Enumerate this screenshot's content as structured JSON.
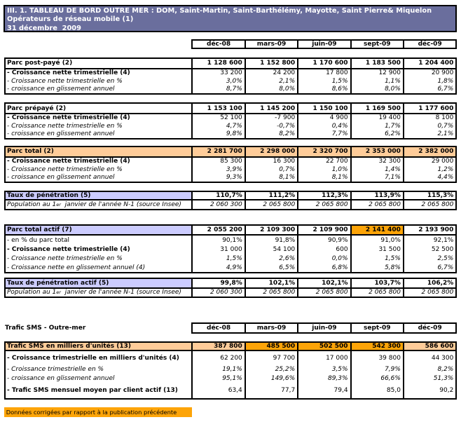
{
  "title": {
    "line1": "III. 1. TABLEAU DE BORD OUTRE MER : DOM, Saint-Martin, Saint-Barthélémy, Mayotte, Saint Pierre& Miquelon",
    "line2": "Opérateurs de réseau mobile (1)",
    "line3": "31 décembre  2009"
  },
  "columns": [
    "déc-08",
    "mars-09",
    "juin-09",
    "sept-09",
    "déc-09"
  ],
  "colors": {
    "title_background": "#6a6e9d",
    "highlight_light_orange": "#ffcc99",
    "highlight_dark_orange": "#fda408",
    "highlight_lavender": "#ccccff",
    "border": "#000000",
    "text": "#000000",
    "title_text": "#ffffff"
  },
  "tables": [
    {
      "name": "parc-postpaye",
      "rows": [
        {
          "label": "Parc post-payé (2)",
          "label_style": "bold",
          "value_style": "bold",
          "separator": true,
          "values": [
            "1 128 600",
            "1 152 800",
            "1 170 600",
            "1 183 500",
            "1 204 400"
          ]
        },
        {
          "label": "- Croissance nette trimestrielle (4)",
          "label_style": "bold",
          "value_style": "normal",
          "values": [
            "33 200",
            "24 200",
            "17 800",
            "12 900",
            "20 900"
          ]
        },
        {
          "label": "- Croissance nette trimestrielle en %",
          "label_style": "italic",
          "value_style": "italic",
          "values": [
            "3,0%",
            "2,1%",
            "1,5%",
            "1,1%",
            "1,8%"
          ]
        },
        {
          "label": "- croissance en glissement annuel",
          "label_style": "italic",
          "value_style": "italic",
          "values": [
            "8,7%",
            "8,0%",
            "8,6%",
            "8,0%",
            "6,7%"
          ]
        }
      ]
    },
    {
      "name": "parc-prepaye",
      "rows": [
        {
          "label": "Parc prépayé (2)",
          "label_style": "bold",
          "value_style": "bold",
          "separator": true,
          "values": [
            "1 153 100",
            "1 145 200",
            "1 150 100",
            "1 169 500",
            "1 177 600"
          ]
        },
        {
          "label": "- Croissance nette trimestrielle (4)",
          "label_style": "bold",
          "value_style": "normal",
          "values": [
            "52 100",
            "-7 900",
            "4 900",
            "19 400",
            "8 100"
          ]
        },
        {
          "label": "- Croissance nette trimestrielle en %",
          "label_style": "italic",
          "value_style": "italic",
          "values": [
            "4,7%",
            "-0,7%",
            "0,4%",
            "1,7%",
            "0,7%"
          ]
        },
        {
          "label": "- croissance en glissement annuel",
          "label_style": "italic",
          "value_style": "italic",
          "values": [
            "9,8%",
            "8,2%",
            "7,7%",
            "6,2%",
            "2,1%"
          ]
        }
      ]
    },
    {
      "name": "parc-total",
      "rows": [
        {
          "label": "Parc total (2)",
          "label_style": "bold",
          "value_style": "bold",
          "separator": true,
          "label_bg": "peach",
          "value_bgs": [
            "peach",
            "peach",
            "peach",
            "peach",
            "peach"
          ],
          "values": [
            "2 281 700",
            "2 298 000",
            "2 320 700",
            "2 353 000",
            "2 382 000"
          ]
        },
        {
          "label": "- Croissance nette trimestrielle (4)",
          "label_style": "bold",
          "value_style": "normal",
          "values": [
            "85 300",
            "16 300",
            "22 700",
            "32 300",
            "29 000"
          ]
        },
        {
          "label": "- Croissance nette trimestrielle en %",
          "label_style": "italic",
          "value_style": "italic",
          "values": [
            "3,9%",
            "0,7%",
            "1,0%",
            "1,4%",
            "1,2%"
          ]
        },
        {
          "label": "- croissance en glissement annuel",
          "label_style": "italic",
          "value_style": "italic",
          "values": [
            "9,3%",
            "8,1%",
            "8,1%",
            "7,1%",
            "4,4%"
          ]
        }
      ]
    },
    {
      "name": "taux-penetration",
      "rows": [
        {
          "label": "Taux de pénétration (5)",
          "label_style": "bold",
          "value_style": "bold",
          "separator": true,
          "label_bg": "lavender",
          "values": [
            "110,7%",
            "111,2%",
            "112,3%",
            "113,9%",
            "115,3%"
          ]
        },
        {
          "label": "Population au 1",
          "label_sup": "er",
          "label_rest": "  janvier de l'année N-1 (source Insee)",
          "label_style": "italic",
          "value_style": "italic",
          "values": [
            "2 060 300",
            "2 065 800",
            "2 065 800",
            "2 065 800",
            "2 065 800"
          ]
        }
      ]
    },
    {
      "name": "parc-total-actif",
      "rows": [
        {
          "label": "Parc total actif (7)",
          "label_style": "bold",
          "value_style": "bold",
          "separator": true,
          "label_bg": "lavender",
          "value_bgs": [
            null,
            null,
            null,
            "orange",
            null
          ],
          "values": [
            "2 055 200",
            "2 109 300",
            "2 109 900",
            "2 141 400",
            "2 193 900"
          ]
        },
        {
          "label": "- en % du parc total",
          "label_style": "normal",
          "value_style": "normal",
          "values": [
            "90,1%",
            "91,8%",
            "90,9%",
            "91,0%",
            "92,1%"
          ]
        },
        {
          "label": "- Croissance nette trimestrielle (4)",
          "label_style": "bold",
          "value_style": "normal",
          "values": [
            "31 000",
            "54 100",
            "600",
            "31 500",
            "52 500"
          ]
        },
        {
          "label": "- Croissance nette trimestrielle en %",
          "label_style": "italic",
          "value_style": "italic",
          "values": [
            "1,5%",
            "2,6%",
            "0,0%",
            "1,5%",
            "2,5%"
          ]
        },
        {
          "label": "- Croissance nette en glissement annuel (4)",
          "label_style": "italic",
          "value_style": "italic",
          "values": [
            "4,9%",
            "6,5%",
            "6,8%",
            "5,8%",
            "6,7%"
          ]
        }
      ]
    },
    {
      "name": "taux-penetration-actif",
      "rows": [
        {
          "label": "Taux de pénétration actif (5)",
          "label_style": "bold",
          "value_style": "bold",
          "separator": true,
          "label_bg": "lavender",
          "values": [
            "99,8%",
            "102,1%",
            "102,1%",
            "103,7%",
            "106,2%"
          ]
        },
        {
          "label": "Population au 1",
          "label_sup": "er",
          "label_rest": "  janvier de l'année N-1 (source Insee)",
          "label_style": "italic",
          "value_style": "italic",
          "values": [
            "2 060 300",
            "2 065 800",
            "2 065 800",
            "2 065 800",
            "2 065 800"
          ]
        }
      ]
    },
    {
      "name": "trafic-sms",
      "rows": [
        {
          "label": "Trafic SMS en milliers d'unités (13)",
          "label_style": "bold",
          "value_style": "bold",
          "separator": true,
          "label_bg": "peach",
          "value_bgs": [
            "peach",
            "orange",
            "orange",
            "orange",
            "peach"
          ],
          "values": [
            "387 800",
            "485 500",
            "502 500",
            "542 300",
            "586 600"
          ]
        },
        {
          "label": "- Croissance trimestrielle en milliers d'unités (4)",
          "label_style": "bold",
          "value_style": "normal",
          "values": [
            "62 200",
            "97 700",
            "17 000",
            "39 800",
            "44 300"
          ]
        },
        {
          "label": "- Croissance trimestrielle en %",
          "label_style": "italic",
          "value_style": "italic",
          "values": [
            "19,1%",
            "25,2%",
            "3,5%",
            "7,9%",
            "8,2%"
          ]
        },
        {
          "label": "- croissance en glissement annuel",
          "label_style": "italic",
          "value_style": "italic",
          "values": [
            "95,1%",
            "149,6%",
            "89,3%",
            "66,6%",
            "51,3%"
          ]
        },
        {
          "label": "- Trafic SMS mensuel moyen par client actif (13)",
          "label_style": "bold",
          "value_style": "normal",
          "values": [
            "63,4",
            "77,7",
            "79,4",
            "85,0",
            "90,2"
          ]
        }
      ]
    }
  ],
  "sms_caption": "Trafic SMS - Outre-mer",
  "footer_note": "Données corrigées par rapport à la publication précédente"
}
